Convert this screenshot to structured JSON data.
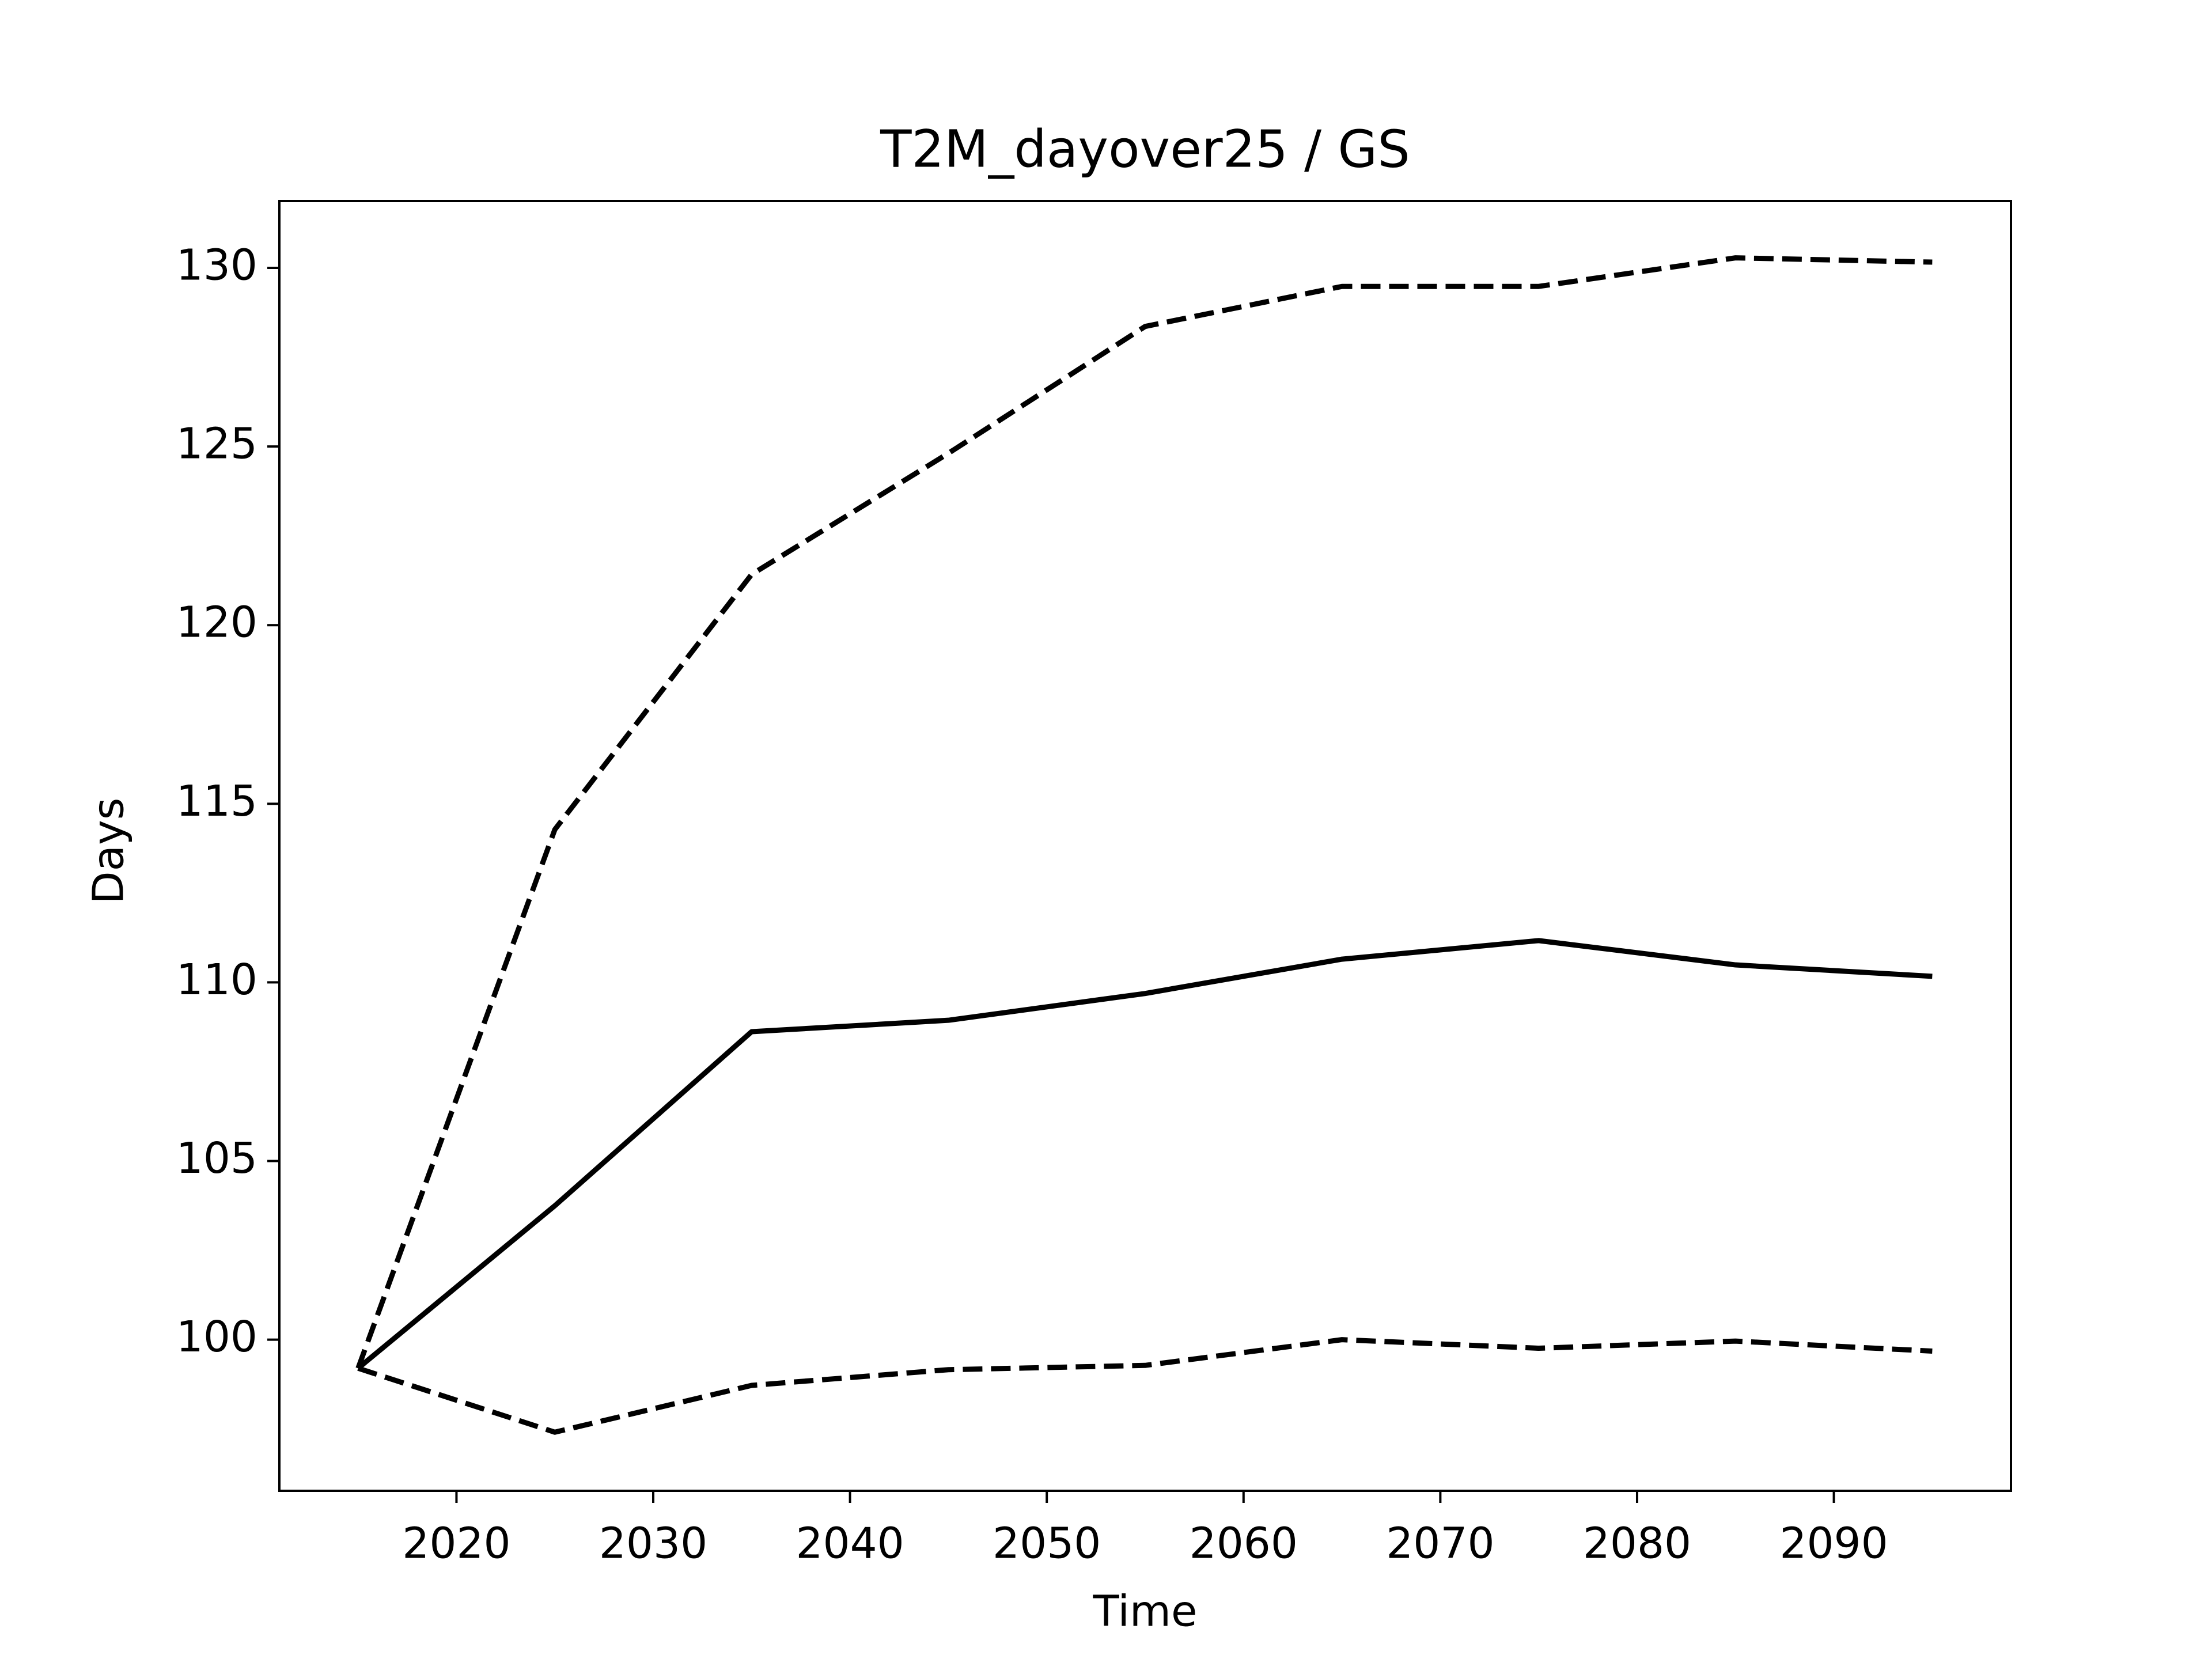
{
  "chart_data": {
    "type": "line",
    "title": "T2M_dayover25 / GS",
    "x_label": "Time",
    "y_label": "Days",
    "x": [
      2015,
      2025,
      2035,
      2045,
      2055,
      2065,
      2075,
      2085,
      2095
    ],
    "series": [
      {
        "color": "#000000",
        "linestyle": "solid",
        "values": [
          99.2,
          103.75,
          108.62,
          108.94,
          109.69,
          110.65,
          111.17,
          110.49,
          110.17
        ]
      },
      {
        "color": "#000000",
        "linestyle": "dashed",
        "values": [
          99.2,
          114.28,
          121.42,
          124.81,
          128.36,
          129.48,
          129.48,
          130.28,
          130.16
        ]
      },
      {
        "color": "#000000",
        "linestyle": "dashed",
        "values": [
          99.2,
          97.41,
          98.72,
          99.16,
          99.28,
          100.0,
          99.76,
          99.96,
          99.68
        ]
      }
    ],
    "xlim": [
      2011,
      2099
    ],
    "xticks": [
      2020,
      2030,
      2040,
      2050,
      2060,
      2070,
      2080,
      2090
    ],
    "ylim": [
      95.77,
      131.87
    ],
    "yticks": [
      100,
      105,
      110,
      115,
      120,
      125,
      130
    ],
    "grid": false
  }
}
